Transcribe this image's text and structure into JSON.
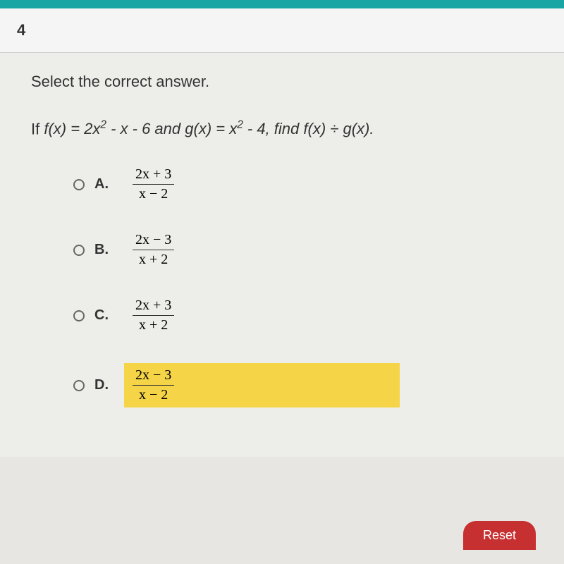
{
  "question": {
    "number": "4",
    "instruction": "Select the correct answer.",
    "problem_prefix": "If ",
    "fx": "f(x) = 2x",
    "fx_exp": "2",
    "fx_rest": " - x - 6 and ",
    "gx": "g(x) = x",
    "gx_exp": "2",
    "gx_rest": " - 4, find ",
    "find": "f(x) ÷ g(x)."
  },
  "options": [
    {
      "label": "A.",
      "numerator": "2x + 3",
      "denominator": "x − 2",
      "highlighted": false
    },
    {
      "label": "B.",
      "numerator": "2x − 3",
      "denominator": "x + 2",
      "highlighted": false
    },
    {
      "label": "C.",
      "numerator": "2x + 3",
      "denominator": "x + 2",
      "highlighted": false
    },
    {
      "label": "D.",
      "numerator": "2x − 3",
      "denominator": "x − 2",
      "highlighted": true
    }
  ],
  "buttons": {
    "reset": "Reset"
  },
  "colors": {
    "topbar": "#1aa5a5",
    "highlight": "#f5d547",
    "reset_bg": "#c73030",
    "bg": "#ededea"
  }
}
